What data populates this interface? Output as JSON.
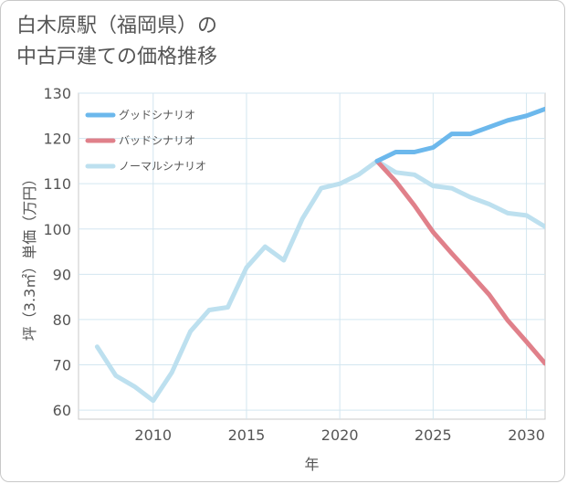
{
  "title_line1": "白木原駅（福岡県）の",
  "title_line2": "中古戸建ての価格推移",
  "chart_data": {
    "type": "line",
    "xlabel": "年",
    "ylabel": "坪（3.3㎡）単価（万円）",
    "xlim": [
      2006,
      2031
    ],
    "ylim": [
      58,
      130
    ],
    "xticks": [
      2010,
      2015,
      2020,
      2025,
      2030
    ],
    "yticks": [
      60,
      70,
      80,
      90,
      100,
      110,
      120,
      130
    ],
    "grid": true,
    "legend_position": "top-left",
    "series": [
      {
        "name": "グッドシナリオ",
        "color": "#6cb8ec",
        "x": [
          2022,
          2023,
          2024,
          2025,
          2026,
          2027,
          2028,
          2029,
          2030,
          2031
        ],
        "y": [
          115,
          117,
          117,
          118,
          121,
          121,
          122.5,
          124,
          125,
          126.5
        ]
      },
      {
        "name": "バッドシナリオ",
        "color": "#e0808a",
        "x": [
          2022,
          2023,
          2024,
          2025,
          2026,
          2027,
          2028,
          2029,
          2030,
          2031
        ],
        "y": [
          115,
          110.5,
          105.2,
          99.3,
          94.6,
          90.1,
          85.5,
          79.8,
          75.1,
          70.3
        ]
      },
      {
        "name": "ノーマルシナリオ",
        "color": "#bde0ef",
        "x": [
          2007,
          2008,
          2009,
          2010,
          2011,
          2012,
          2013,
          2014,
          2015,
          2016,
          2017,
          2018,
          2019,
          2020,
          2021,
          2022,
          2023,
          2024,
          2025,
          2026,
          2027,
          2028,
          2029,
          2030,
          2031
        ],
        "y": [
          74,
          67.6,
          65.2,
          62.1,
          68.3,
          77.4,
          82.1,
          82.7,
          91.5,
          96.1,
          93.1,
          102.3,
          109,
          110,
          112,
          115,
          112.5,
          112,
          109.5,
          109,
          107,
          105.5,
          103.5,
          103,
          100.5
        ]
      }
    ]
  }
}
